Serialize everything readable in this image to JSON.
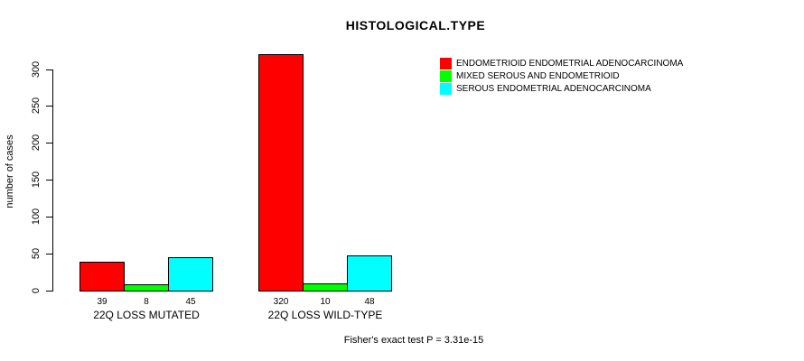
{
  "chart_data": {
    "type": "bar",
    "title": "HISTOLOGICAL.TYPE",
    "xlabel": "",
    "ylabel": "number of cases",
    "categories": [
      "22Q LOSS MUTATED",
      "22Q LOSS WILD-TYPE"
    ],
    "series": [
      {
        "name": "ENDOMETRIOID ENDOMETRIAL ADENOCARCINOMA",
        "color": "#FF0000",
        "values": [
          39,
          320
        ]
      },
      {
        "name": "MIXED SEROUS AND ENDOMETRIOID",
        "color": "#00FF00",
        "values": [
          8,
          10
        ]
      },
      {
        "name": "SEROUS ENDOMETRIAL ADENOCARCINOMA",
        "color": "#00FFFF",
        "values": [
          45,
          48
        ]
      }
    ],
    "bar_value_labels": [
      [
        39,
        8,
        45
      ],
      [
        320,
        10,
        48
      ]
    ],
    "ylim": [
      0,
      300
    ],
    "yticks": [
      0,
      50,
      100,
      150,
      200,
      250,
      300
    ],
    "grid": false,
    "legend_position": "top-right",
    "bar_border_color": "#000000"
  },
  "footer": {
    "text": "Fisher's exact test P = 3.31e-15"
  },
  "colors": {
    "background": "#FFFFFF",
    "axis": "#000000"
  }
}
